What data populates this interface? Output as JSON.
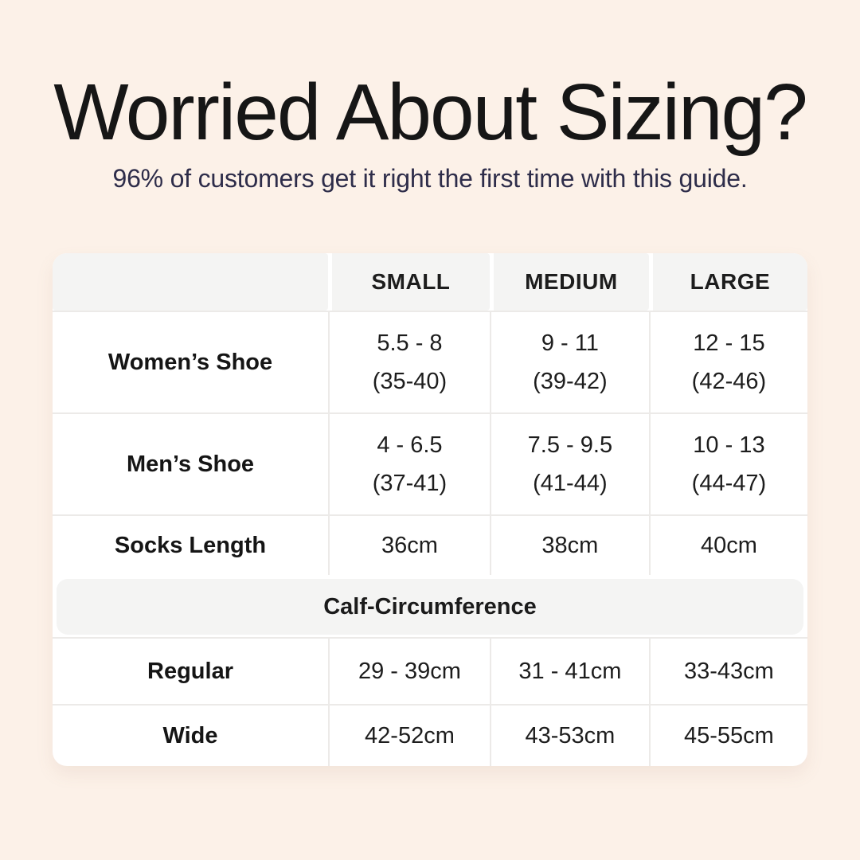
{
  "colors": {
    "background": "#fcf1e8",
    "subtitle_navy": "#2e2d4a",
    "title_black": "#161616",
    "table_white": "#ffffff",
    "header_gray": "#f4f4f3",
    "grid_line": "#eceae8"
  },
  "header": {
    "title": "Worried About Sizing?",
    "subtitle": "96% of customers get it right the first time with this guide."
  },
  "table": {
    "column_headers": [
      "SMALL",
      "MEDIUM",
      "LARGE"
    ],
    "shoe_rows": [
      {
        "label": "Women’s Shoe",
        "cells": [
          {
            "us": "5.5 - 8",
            "eu": "(35-40)"
          },
          {
            "us": "9 - 11",
            "eu": "(39-42)"
          },
          {
            "us": "12 - 15",
            "eu": "(42-46)"
          }
        ]
      },
      {
        "label": "Men’s Shoe",
        "cells": [
          {
            "us": "4 - 6.5",
            "eu": "(37-41)"
          },
          {
            "us": "7.5 - 9.5",
            "eu": "(41-44)"
          },
          {
            "us": "10 - 13",
            "eu": "(44-47)"
          }
        ]
      }
    ],
    "socks_row": {
      "label": "Socks Length",
      "values": [
        "36cm",
        "38cm",
        "40cm"
      ]
    },
    "section_header": "Calf-Circumference",
    "calf_rows": [
      {
        "label": "Regular",
        "values": [
          "29 - 39cm",
          "31 - 41cm",
          "33-43cm"
        ]
      },
      {
        "label": "Wide",
        "values": [
          "42-52cm",
          "43-53cm",
          "45-55cm"
        ]
      }
    ]
  },
  "chart_data": {
    "type": "table",
    "title": "Worried About Sizing?",
    "subtitle": "96% of customers get it right the first time with this guide.",
    "columns": [
      "",
      "SMALL",
      "MEDIUM",
      "LARGE"
    ],
    "rows": [
      [
        "Women’s Shoe",
        "5.5 - 8 (35-40)",
        "9 - 11 (39-42)",
        "12 - 15 (42-46)"
      ],
      [
        "Men’s Shoe",
        "4 - 6.5 (37-41)",
        "7.5 - 9.5 (41-44)",
        "10 - 13 (44-47)"
      ],
      [
        "Socks Length",
        "36cm",
        "38cm",
        "40cm"
      ],
      [
        "Calf-Circumference",
        "",
        "",
        ""
      ],
      [
        "Regular",
        "29 - 39cm",
        "31 - 41cm",
        "33-43cm"
      ],
      [
        "Wide",
        "42-52cm",
        "43-53cm",
        "45-55cm"
      ]
    ],
    "layout": {
      "section_row_index": 3,
      "grid": true,
      "header_background": "#f4f4f3"
    }
  }
}
